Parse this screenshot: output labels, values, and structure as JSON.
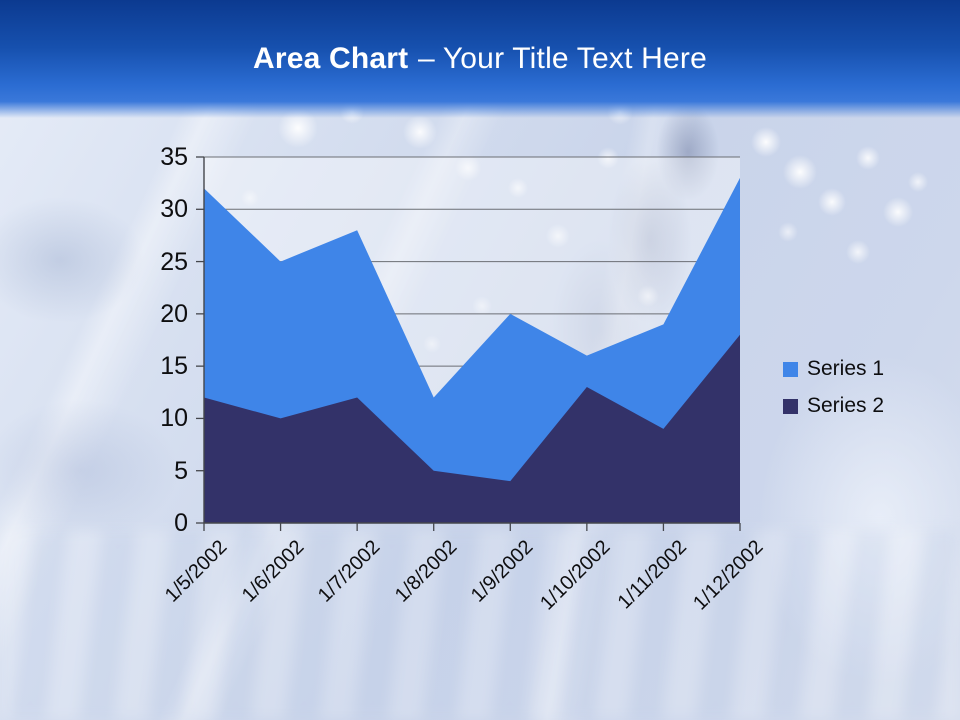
{
  "slide": {
    "title_bold": "Area Chart",
    "title_rest": "– Your Title Text Here"
  },
  "chart_data": {
    "type": "area",
    "mode": "overlapping",
    "title": "Area Chart – Your Title Text Here",
    "categories": [
      "1/5/2002",
      "1/6/2002",
      "1/7/2002",
      "1/8/2002",
      "1/9/2002",
      "1/10/2002",
      "1/11/2002",
      "1/12/2002"
    ],
    "series": [
      {
        "name": "Series 1",
        "color": "#3f85e8",
        "values": [
          32,
          25,
          28,
          12,
          20,
          16,
          19,
          33
        ]
      },
      {
        "name": "Series 2",
        "color": "#333269",
        "values": [
          12,
          10,
          12,
          5,
          4,
          13,
          9,
          18
        ]
      }
    ],
    "ylim": [
      0,
      35
    ],
    "yticks": [
      0,
      5,
      10,
      15,
      20,
      25,
      30,
      35
    ],
    "grid": true,
    "legend_position": "right"
  },
  "colors": {
    "header_top": "#0c3a90",
    "header_bottom": "#2e70d6",
    "title_text": "#ffffff",
    "series1": "#3f85e8",
    "series2": "#333269",
    "gridline": "#6b6e74",
    "axis": "#44464c",
    "tick_label": "#0e0e10",
    "plot_backdrop": "rgba(255,255,255,0.38)"
  }
}
